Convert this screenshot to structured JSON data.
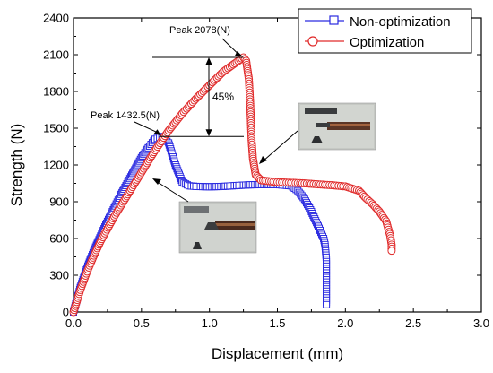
{
  "chart_data": {
    "type": "scatter",
    "xlabel": "Displacement (mm)",
    "ylabel": "Strength (N)",
    "xlim": [
      0,
      3.0
    ],
    "ylim": [
      0,
      2400
    ],
    "xticks": [
      0.0,
      0.5,
      1.0,
      1.5,
      2.0,
      2.5,
      3.0
    ],
    "xtick_labels": [
      "0.0",
      "0.5",
      "1.0",
      "1.5",
      "2.0",
      "2.5",
      "3.0"
    ],
    "yticks": [
      0,
      300,
      600,
      900,
      1200,
      1500,
      1800,
      2100,
      2400
    ],
    "ytick_labels": [
      "0",
      "300",
      "600",
      "900",
      "1200",
      "1500",
      "1800",
      "2100",
      "2400"
    ],
    "grid": false,
    "legend_position": "top-right",
    "series": [
      {
        "name": "Non-optimization",
        "color": "#2a2ae0",
        "marker": "square-open",
        "points": [
          [
            0.0,
            0
          ],
          [
            0.05,
            200
          ],
          [
            0.1,
            360
          ],
          [
            0.15,
            500
          ],
          [
            0.2,
            620
          ],
          [
            0.25,
            740
          ],
          [
            0.3,
            850
          ],
          [
            0.35,
            960
          ],
          [
            0.4,
            1060
          ],
          [
            0.45,
            1160
          ],
          [
            0.5,
            1260
          ],
          [
            0.55,
            1340
          ],
          [
            0.6,
            1410
          ],
          [
            0.65,
            1432.5
          ],
          [
            0.7,
            1380
          ],
          [
            0.75,
            1200
          ],
          [
            0.8,
            1060
          ],
          [
            0.85,
            1030
          ],
          [
            0.9,
            1025
          ],
          [
            1.0,
            1022
          ],
          [
            1.1,
            1025
          ],
          [
            1.2,
            1032
          ],
          [
            1.3,
            1038
          ],
          [
            1.4,
            1040
          ],
          [
            1.5,
            1040
          ],
          [
            1.6,
            1030
          ],
          [
            1.65,
            990
          ],
          [
            1.7,
            920
          ],
          [
            1.75,
            820
          ],
          [
            1.8,
            700
          ],
          [
            1.84,
            600
          ],
          [
            1.85,
            550
          ],
          [
            1.86,
            430
          ],
          [
            1.86,
            300
          ],
          [
            1.86,
            170
          ],
          [
            1.86,
            60
          ]
        ]
      },
      {
        "name": "Optimization",
        "color": "#e02a2a",
        "marker": "circle-open",
        "points": [
          [
            0.0,
            0
          ],
          [
            0.05,
            180
          ],
          [
            0.1,
            330
          ],
          [
            0.15,
            460
          ],
          [
            0.2,
            580
          ],
          [
            0.3,
            780
          ],
          [
            0.4,
            960
          ],
          [
            0.5,
            1140
          ],
          [
            0.6,
            1320
          ],
          [
            0.7,
            1480
          ],
          [
            0.8,
            1620
          ],
          [
            0.9,
            1740
          ],
          [
            1.0,
            1850
          ],
          [
            1.1,
            1960
          ],
          [
            1.2,
            2040
          ],
          [
            1.25,
            2078
          ],
          [
            1.27,
            2050
          ],
          [
            1.29,
            1900
          ],
          [
            1.3,
            1700
          ],
          [
            1.31,
            1400
          ],
          [
            1.32,
            1250
          ],
          [
            1.34,
            1120
          ],
          [
            1.38,
            1075
          ],
          [
            1.5,
            1060
          ],
          [
            1.6,
            1055
          ],
          [
            1.7,
            1050
          ],
          [
            1.8,
            1042
          ],
          [
            1.9,
            1035
          ],
          [
            2.0,
            1025
          ],
          [
            2.1,
            990
          ],
          [
            2.15,
            930
          ],
          [
            2.2,
            880
          ],
          [
            2.25,
            820
          ],
          [
            2.3,
            740
          ],
          [
            2.33,
            620
          ],
          [
            2.34,
            550
          ],
          [
            2.34,
            500
          ]
        ]
      }
    ],
    "annotations": [
      {
        "text": "Peak  2078(N)",
        "x": 1.25,
        "y": 2078
      },
      {
        "text": "Peak  1432.5(N)",
        "x": 0.65,
        "y": 1432.5
      },
      {
        "text": "45%"
      }
    ]
  }
}
